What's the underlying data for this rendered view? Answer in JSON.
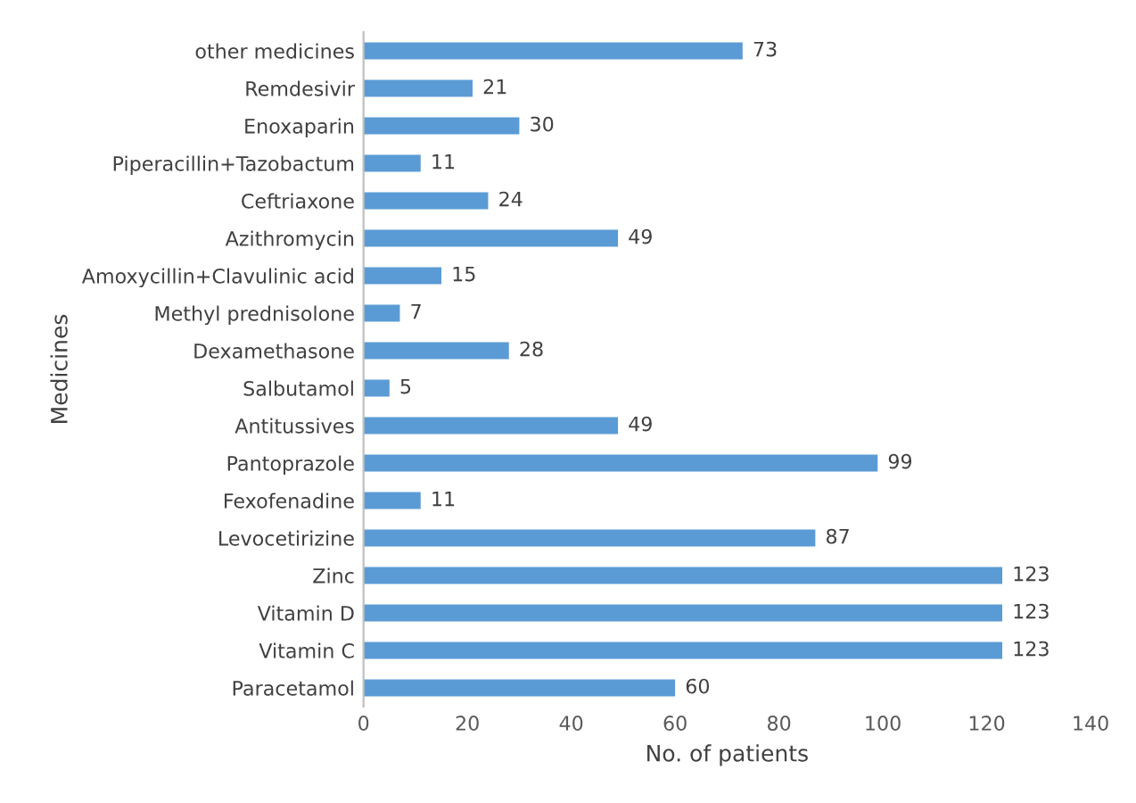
{
  "chart_data": {
    "type": "bar",
    "orientation": "horizontal",
    "xlabel": "No. of patients",
    "ylabel": "Medicines",
    "categories": [
      "other medicines",
      "Remdesivir",
      "Enoxaparin",
      "Piperacillin+Tazobactum",
      "Ceftriaxone",
      "Azithromycin",
      "Amoxycillin+Clavulinic acid",
      "Methyl prednisolone",
      "Dexamethasone",
      "Salbutamol",
      "Antitussives",
      "Pantoprazole",
      "Fexofenadine",
      "Levocetirizine",
      "Zinc",
      "Vitamin D",
      "Vitamin C",
      "Paracetamol"
    ],
    "values": [
      73,
      21,
      30,
      11,
      24,
      49,
      15,
      7,
      28,
      5,
      49,
      99,
      11,
      87,
      123,
      123,
      123,
      60
    ],
    "color": "#5b9bd5",
    "xlim": [
      0,
      140
    ],
    "xticks": [
      0,
      20,
      40,
      60,
      80,
      100,
      120,
      140
    ],
    "grid": false,
    "data_labels": true
  }
}
